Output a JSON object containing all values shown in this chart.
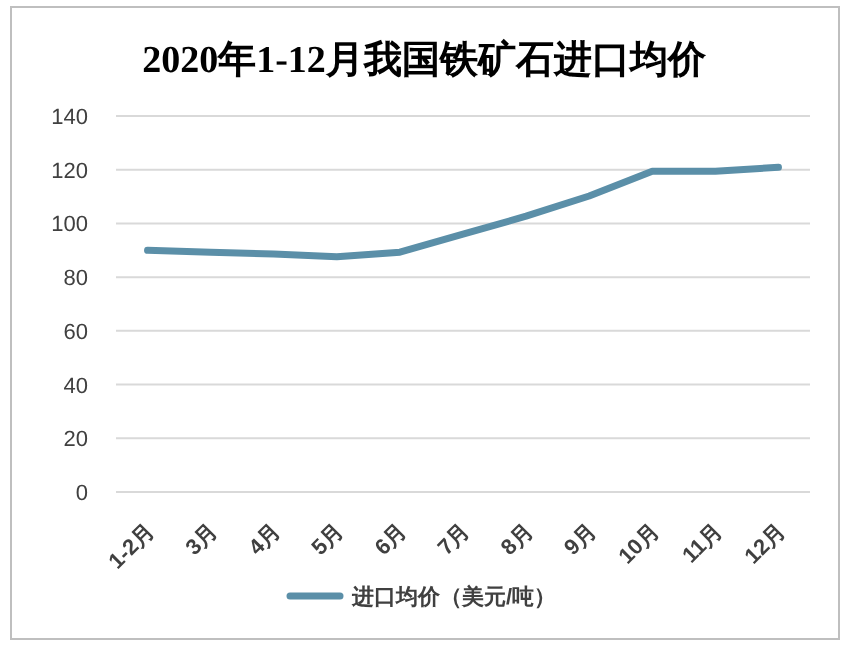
{
  "chart_data": {
    "type": "line",
    "title": "2020年1-12月我国铁矿石进口均价",
    "categories": [
      "1-2月",
      "3月",
      "4月",
      "5月",
      "6月",
      "7月",
      "8月",
      "9月",
      "10月",
      "11月",
      "12月"
    ],
    "series": [
      {
        "name": "进口均价（美元/吨）",
        "color": "#5b8fa8",
        "values": [
          90,
          89.3,
          88.6,
          87.6,
          89.3,
          96,
          102.7,
          110.2,
          119.4,
          119.4,
          120.9
        ]
      }
    ],
    "ylim": [
      0,
      140
    ],
    "yticks": [
      0,
      20,
      40,
      60,
      80,
      100,
      120,
      140
    ],
    "grid": "y",
    "legend": "bottom",
    "marker": "none",
    "line_style": "solid"
  }
}
